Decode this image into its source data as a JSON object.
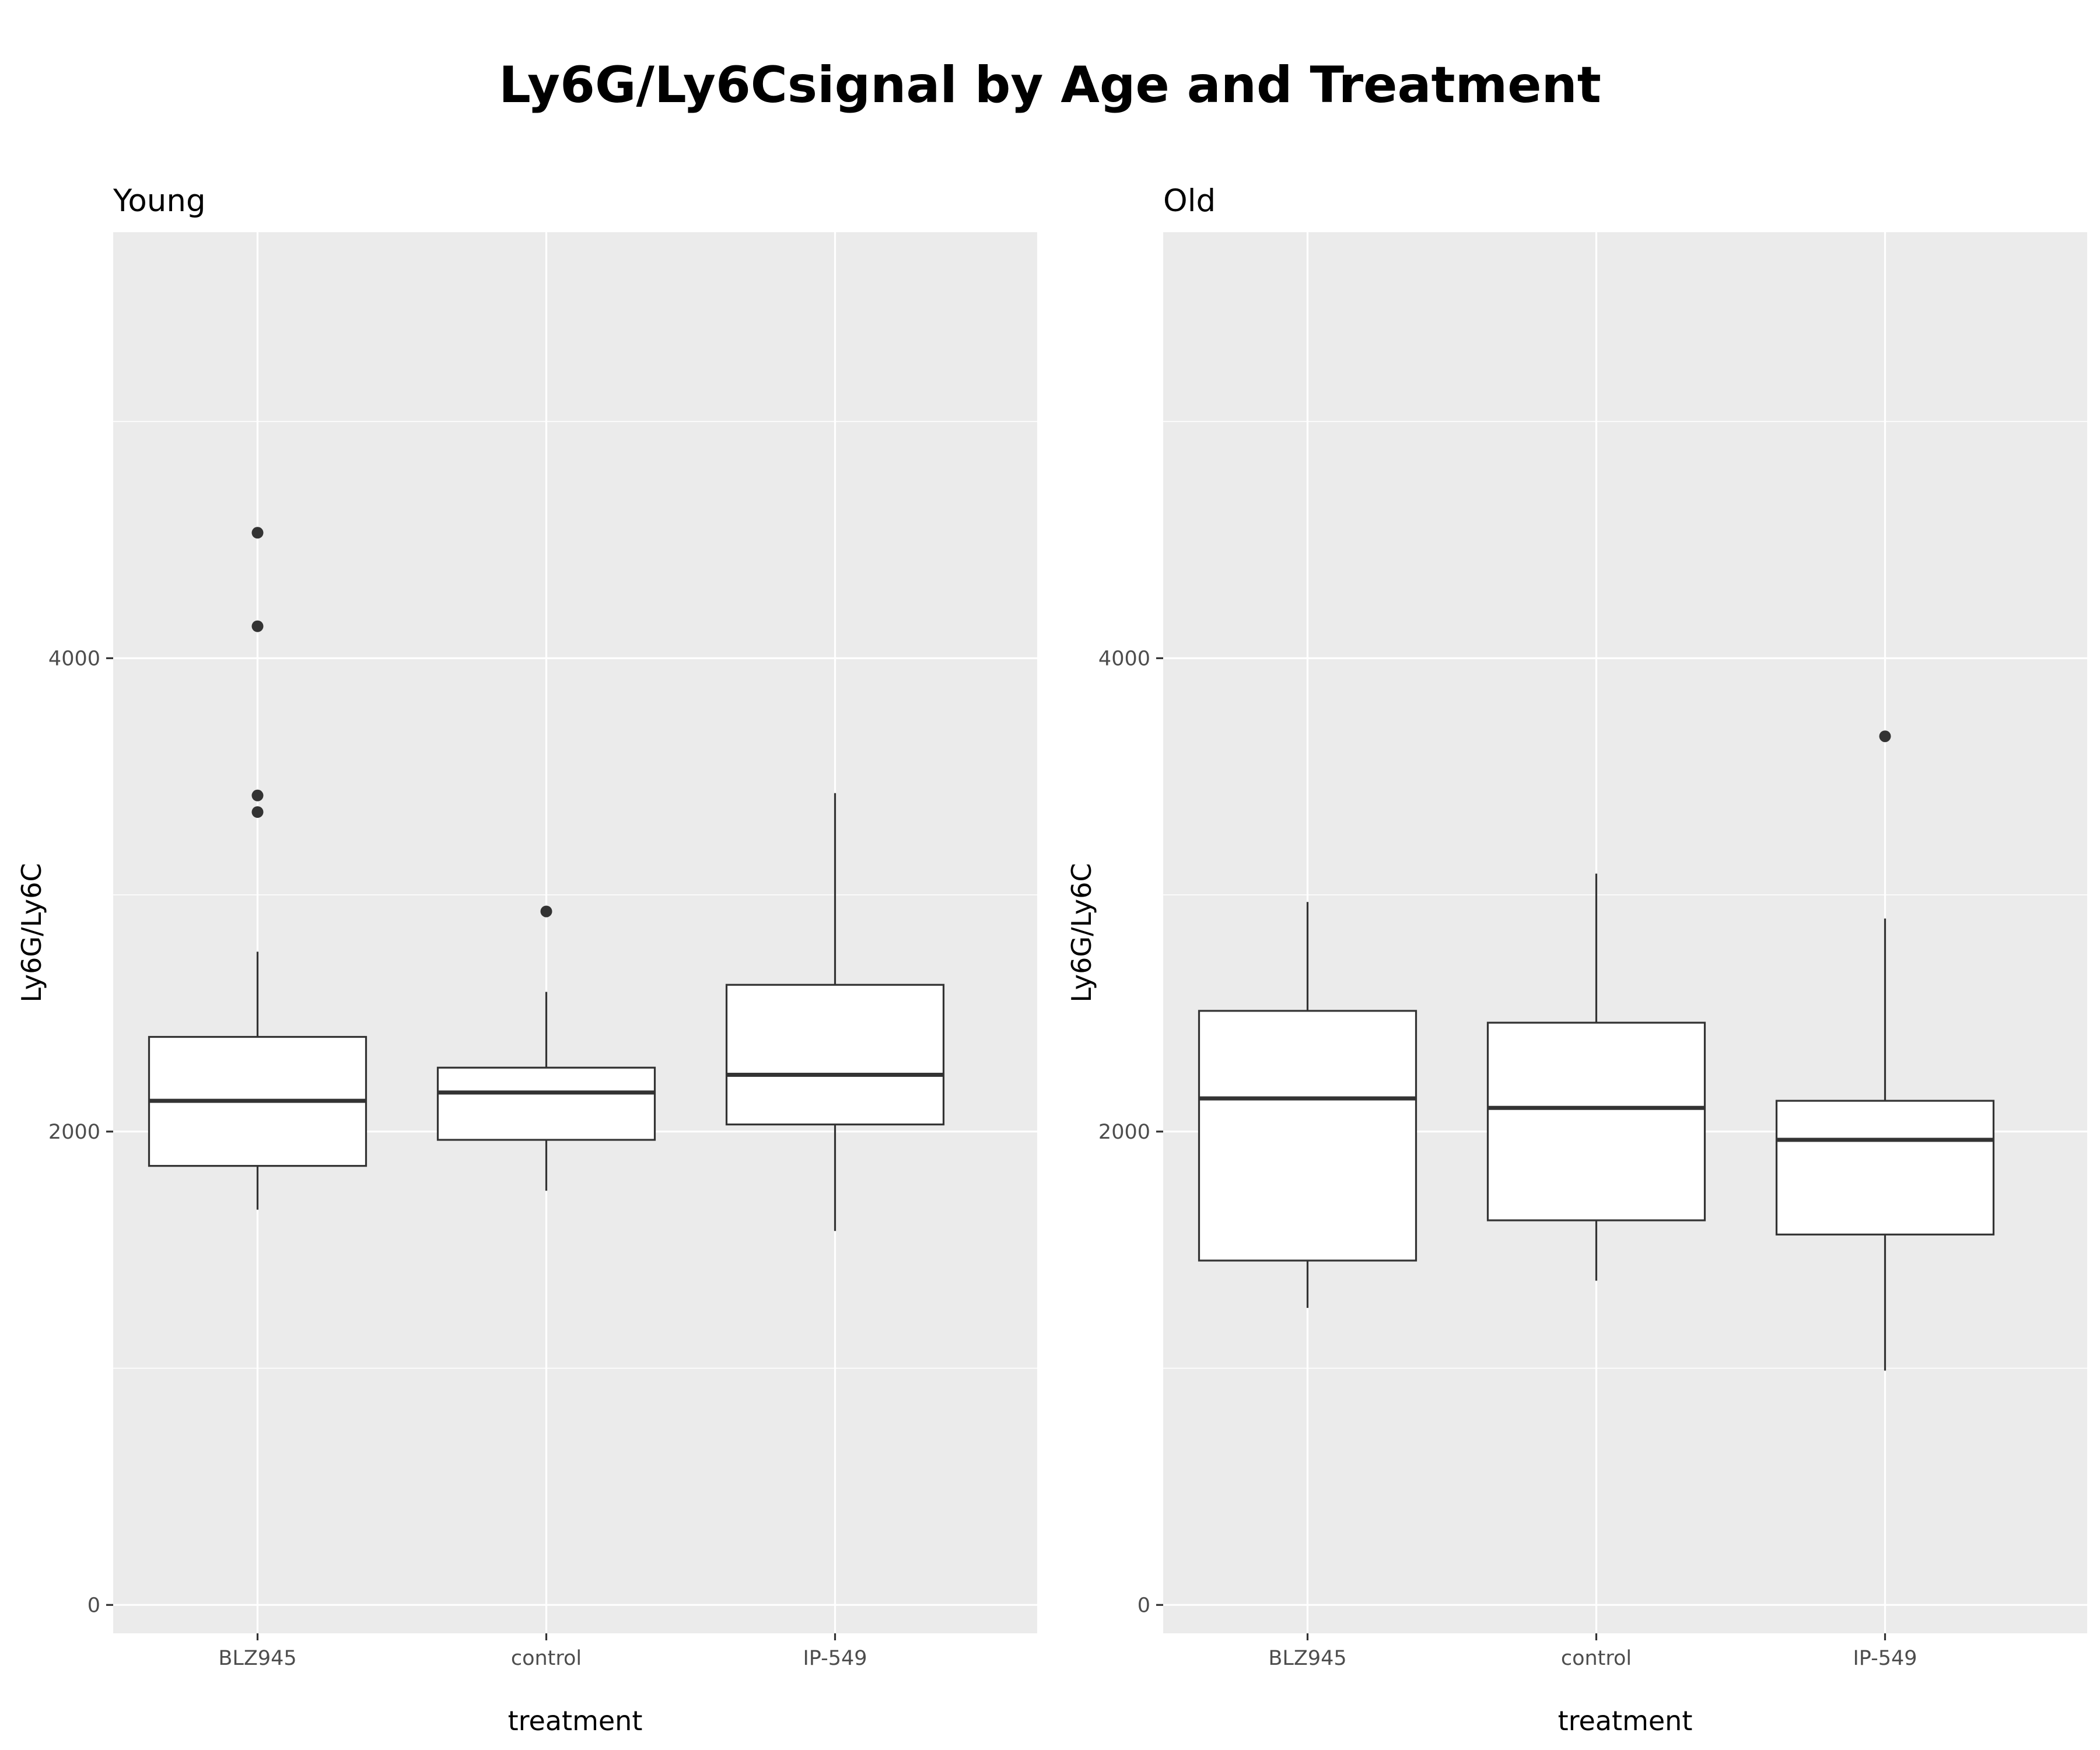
{
  "chart_data": {
    "type": "boxplot",
    "title": "Ly6G/Ly6Csignal by Age and Treatment",
    "xlabel": "treatment",
    "ylabel": "Ly6G/Ly6C",
    "categories": [
      "BLZ945",
      "control",
      "IP-549"
    ],
    "ylim": [
      -120,
      5800
    ],
    "yticks": [
      0,
      2000,
      4000
    ],
    "grid": true,
    "colors": {
      "panel_bg": "#ebebeb",
      "grid": "#ffffff",
      "box_fill": "#ffffff",
      "box_line": "#333333",
      "tick": "#4d4d4d"
    },
    "panels": [
      {
        "name": "Young",
        "boxes": [
          {
            "category": "BLZ945",
            "lower_whisker": 1670,
            "q1": 1855,
            "median": 2130,
            "q3": 2400,
            "upper_whisker": 2760,
            "outliers": [
              4530,
              4135,
              3420,
              3350
            ]
          },
          {
            "category": "control",
            "lower_whisker": 1750,
            "q1": 1965,
            "median": 2165,
            "q3": 2270,
            "upper_whisker": 2590,
            "outliers": [
              2930
            ]
          },
          {
            "category": "IP-549",
            "lower_whisker": 1580,
            "q1": 2030,
            "median": 2240,
            "q3": 2620,
            "upper_whisker": 3430,
            "outliers": []
          }
        ]
      },
      {
        "name": "Old",
        "boxes": [
          {
            "category": "BLZ945",
            "lower_whisker": 1255,
            "q1": 1455,
            "median": 2140,
            "q3": 2510,
            "upper_whisker": 2970,
            "outliers": []
          },
          {
            "category": "control",
            "lower_whisker": 1370,
            "q1": 1625,
            "median": 2100,
            "q3": 2460,
            "upper_whisker": 3090,
            "outliers": []
          },
          {
            "category": "IP-549",
            "lower_whisker": 990,
            "q1": 1565,
            "median": 1965,
            "q3": 2130,
            "upper_whisker": 2900,
            "outliers": [
              3670
            ]
          }
        ]
      }
    ]
  }
}
